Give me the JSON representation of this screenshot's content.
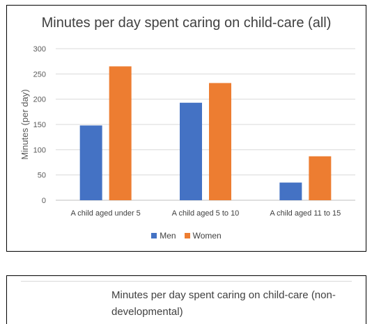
{
  "chart_data": [
    {
      "type": "bar",
      "title": "Minutes per day spent caring on child-care (all)",
      "xlabel": "",
      "ylabel": "Minutes (per day)",
      "categories": [
        "A child aged under 5",
        "A child aged 5 to 10",
        "A child aged 11 to 15"
      ],
      "series": [
        {
          "name": "Men",
          "values": [
            148,
            193,
            35
          ],
          "color": "#4472c4"
        },
        {
          "name": "Women",
          "values": [
            265,
            232,
            87
          ],
          "color": "#ed7d31"
        }
      ],
      "ylim": [
        0,
        300
      ],
      "yticks": [
        0,
        50,
        100,
        150,
        200,
        250,
        300
      ],
      "grid": true,
      "legend_position": "bottom"
    },
    {
      "type": "bar",
      "title": "Minutes per day spent caring on child-care (non-developmental)"
    }
  ],
  "chart2_title_lines": [
    "Minutes per day spent caring on child-care (non-",
    "developmental)"
  ]
}
